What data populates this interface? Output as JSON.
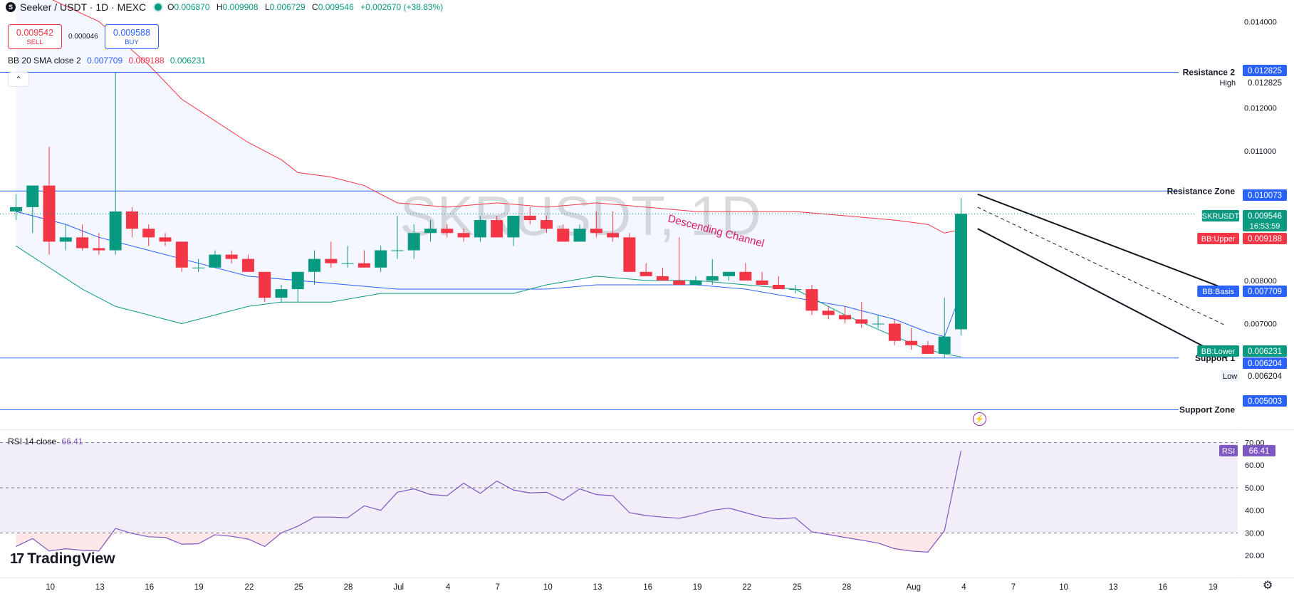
{
  "header": {
    "symbol_icon": "S",
    "title": "Seeker / USDT · 1D · MEXC",
    "ohlc": [
      {
        "k": "O",
        "v": "0.006870"
      },
      {
        "k": "H",
        "v": "0.009908"
      },
      {
        "k": "L",
        "v": "0.006729"
      },
      {
        "k": "C",
        "v": "0.009546"
      }
    ],
    "change": "+0.002670 (+38.83%)"
  },
  "trade": {
    "sell_price": "0.009542",
    "sell_label": "SELL",
    "spread": "0.000046",
    "buy_price": "0.009588",
    "buy_label": "BUY"
  },
  "bb_legend": {
    "name": "BB 20 SMA close 2",
    "basis": "0.007709",
    "upper": "0.009188",
    "lower": "0.006231"
  },
  "rsi_legend": {
    "name": "RSI 14 close",
    "value": "66.41"
  },
  "branding": {
    "logo_mark": "17",
    "logo_text": "TradingView"
  },
  "icons": {
    "collapse": "chevron-up-icon",
    "flash": "lightning-icon",
    "settings": "gear-icon"
  },
  "colors": {
    "up": "#089981",
    "down": "#f23645",
    "bb_upper": "#f23645",
    "bb_basis": "#2962ff",
    "bb_lower": "#089981",
    "rsi": "#7e57c2",
    "hline": "#2962ff"
  },
  "chart_data": {
    "type": "candlestick",
    "watermark": "SKRUSDT, 1D",
    "price_axis": {
      "ticks": [
        "0.014000",
        "0.012000",
        "0.011000",
        "0.008000",
        "0.007000"
      ],
      "range": [
        0.00455,
        0.0145
      ]
    },
    "time_axis": {
      "ticks": [
        "10",
        "13",
        "16",
        "19",
        "22",
        "25",
        "28",
        "Jul",
        "4",
        "7",
        "10",
        "13",
        "16",
        "19",
        "22",
        "25",
        "28",
        "Aug",
        "4",
        "7",
        "10",
        "13",
        "16",
        "19"
      ]
    },
    "horizontal_lines": [
      {
        "label": "Resistance 2",
        "tag": "0.012825",
        "price": 0.012825
      },
      {
        "label": "Resistance Zone",
        "tag": "0.010073",
        "price": 0.010073
      },
      {
        "label": "Support 1",
        "tag": "0.006204",
        "price": 0.006204
      },
      {
        "label": "Support Zone",
        "tag": "0.005003",
        "price": 0.005003
      }
    ],
    "price_tags": [
      {
        "label": "High",
        "value": "0.012825"
      },
      {
        "label": "SKRUSDT",
        "value": "0.009546",
        "countdown": "16:53:59"
      },
      {
        "label": "BB:Upper",
        "value": "0.009188"
      },
      {
        "label": "BB:Basis",
        "value": "0.007709"
      },
      {
        "label": "BB:Lower",
        "value": "0.006231"
      },
      {
        "label": "",
        "value": "0.006204"
      },
      {
        "label": "Low",
        "value": "0.006204"
      }
    ],
    "channel_label": "Descending Channel",
    "channel": {
      "upper": [
        [
          58,
          0.01
        ],
        [
          73,
          0.0078
        ]
      ],
      "mid": [
        [
          58,
          0.0097
        ],
        [
          73,
          0.00695
        ]
      ],
      "lower": [
        [
          58,
          0.0092
        ],
        [
          73,
          0.0062
        ]
      ]
    },
    "candles": [
      [
        0,
        0.0096,
        0.01,
        0.0094,
        0.0097
      ],
      [
        1,
        0.0097,
        0.0102,
        0.0091,
        0.0102
      ],
      [
        2,
        0.0102,
        0.0111,
        0.0086,
        0.0089
      ],
      [
        3,
        0.0089,
        0.0093,
        0.0087,
        0.009
      ],
      [
        4,
        0.009,
        0.0093,
        0.0087,
        0.00875
      ],
      [
        5,
        0.00875,
        0.0091,
        0.0086,
        0.0087
      ],
      [
        6,
        0.0087,
        0.01283,
        0.0086,
        0.0096
      ],
      [
        7,
        0.0096,
        0.0097,
        0.009,
        0.0092
      ],
      [
        8,
        0.0092,
        0.0093,
        0.0088,
        0.009
      ],
      [
        9,
        0.009,
        0.0091,
        0.0088,
        0.0089
      ],
      [
        10,
        0.0089,
        0.0089,
        0.0082,
        0.0083
      ],
      [
        11,
        0.0083,
        0.0085,
        0.0082,
        0.0083
      ],
      [
        12,
        0.0083,
        0.0087,
        0.0083,
        0.0086
      ],
      [
        13,
        0.0086,
        0.0087,
        0.0084,
        0.0085
      ],
      [
        14,
        0.0085,
        0.0086,
        0.0082,
        0.0082
      ],
      [
        15,
        0.0082,
        0.0082,
        0.0075,
        0.0076
      ],
      [
        16,
        0.0076,
        0.0079,
        0.0075,
        0.0078
      ],
      [
        17,
        0.0078,
        0.0082,
        0.0075,
        0.0082
      ],
      [
        18,
        0.0082,
        0.0087,
        0.0079,
        0.0085
      ],
      [
        19,
        0.0085,
        0.0089,
        0.0083,
        0.0084
      ],
      [
        20,
        0.0084,
        0.0088,
        0.0083,
        0.0084
      ],
      [
        21,
        0.0084,
        0.0087,
        0.0083,
        0.0083
      ],
      [
        22,
        0.0083,
        0.0088,
        0.0082,
        0.0087
      ],
      [
        23,
        0.0087,
        0.0095,
        0.0085,
        0.0087
      ],
      [
        24,
        0.0087,
        0.0093,
        0.0085,
        0.0091
      ],
      [
        25,
        0.0091,
        0.0094,
        0.0089,
        0.0092
      ],
      [
        26,
        0.0092,
        0.0093,
        0.009,
        0.0091
      ],
      [
        27,
        0.0091,
        0.0092,
        0.0089,
        0.009
      ],
      [
        28,
        0.009,
        0.0095,
        0.0089,
        0.0094
      ],
      [
        29,
        0.0094,
        0.0095,
        0.009,
        0.009
      ],
      [
        30,
        0.009,
        0.0095,
        0.0088,
        0.0095
      ],
      [
        31,
        0.0095,
        0.0097,
        0.0093,
        0.0094
      ],
      [
        32,
        0.0094,
        0.0095,
        0.0091,
        0.0092
      ],
      [
        33,
        0.0092,
        0.0093,
        0.0089,
        0.0089
      ],
      [
        34,
        0.0089,
        0.0093,
        0.0089,
        0.0092
      ],
      [
        35,
        0.0092,
        0.0096,
        0.009,
        0.0091
      ],
      [
        36,
        0.0091,
        0.0096,
        0.0089,
        0.009
      ],
      [
        37,
        0.009,
        0.0091,
        0.0082,
        0.0082
      ],
      [
        38,
        0.0082,
        0.0084,
        0.0081,
        0.0081
      ],
      [
        39,
        0.0081,
        0.0083,
        0.008,
        0.008
      ],
      [
        40,
        0.008,
        0.009,
        0.0079,
        0.0079
      ],
      [
        41,
        0.0079,
        0.0081,
        0.0079,
        0.008
      ],
      [
        42,
        0.008,
        0.0085,
        0.0079,
        0.0081
      ],
      [
        43,
        0.0081,
        0.0082,
        0.008,
        0.0082
      ],
      [
        44,
        0.0082,
        0.0084,
        0.008,
        0.008
      ],
      [
        45,
        0.008,
        0.0082,
        0.0079,
        0.0079
      ],
      [
        46,
        0.0079,
        0.0081,
        0.0078,
        0.0078
      ],
      [
        47,
        0.0078,
        0.0079,
        0.0077,
        0.0078
      ],
      [
        48,
        0.0078,
        0.0079,
        0.0072,
        0.0073
      ],
      [
        49,
        0.0073,
        0.0074,
        0.0071,
        0.0072
      ],
      [
        50,
        0.0072,
        0.0074,
        0.007,
        0.0071
      ],
      [
        51,
        0.0071,
        0.0075,
        0.0069,
        0.007
      ],
      [
        52,
        0.007,
        0.0072,
        0.0069,
        0.007
      ],
      [
        53,
        0.007,
        0.0071,
        0.0065,
        0.0066
      ],
      [
        54,
        0.0066,
        0.0069,
        0.0064,
        0.0065
      ],
      [
        55,
        0.0065,
        0.0066,
        0.0063,
        0.0063
      ],
      [
        56,
        0.0063,
        0.0076,
        0.0062,
        0.0067
      ],
      [
        57,
        0.00687,
        0.00991,
        0.00673,
        0.009546
      ]
    ],
    "bb_upper": [
      [
        0,
        0.0149
      ],
      [
        5,
        0.014
      ],
      [
        8,
        0.013
      ],
      [
        10,
        0.0122
      ],
      [
        12,
        0.0117
      ],
      [
        14,
        0.0112
      ],
      [
        16,
        0.0108
      ],
      [
        17,
        0.0105
      ],
      [
        19,
        0.0104
      ],
      [
        21,
        0.0102
      ],
      [
        23,
        0.0098
      ],
      [
        26,
        0.0097
      ],
      [
        29,
        0.0098
      ],
      [
        32,
        0.0097
      ],
      [
        35,
        0.0098
      ],
      [
        38,
        0.0097
      ],
      [
        41,
        0.0096
      ],
      [
        44,
        0.0096
      ],
      [
        47,
        0.0096
      ],
      [
        50,
        0.0095
      ],
      [
        53,
        0.0094
      ],
      [
        55,
        0.0093
      ],
      [
        56,
        0.0091
      ],
      [
        57,
        0.00918
      ]
    ],
    "bb_basis": [
      [
        0,
        0.0096
      ],
      [
        3,
        0.0093
      ],
      [
        5,
        0.009
      ],
      [
        8,
        0.0087
      ],
      [
        11,
        0.0084
      ],
      [
        14,
        0.0081
      ],
      [
        17,
        0.008
      ],
      [
        20,
        0.0079
      ],
      [
        23,
        0.0078
      ],
      [
        26,
        0.0078
      ],
      [
        29,
        0.0078
      ],
      [
        32,
        0.0078
      ],
      [
        35,
        0.0079
      ],
      [
        38,
        0.0079
      ],
      [
        41,
        0.0079
      ],
      [
        44,
        0.0078
      ],
      [
        47,
        0.0076
      ],
      [
        50,
        0.0074
      ],
      [
        53,
        0.0071
      ],
      [
        55,
        0.0068
      ],
      [
        56,
        0.0067
      ],
      [
        57,
        0.00771
      ]
    ],
    "bb_lower": [
      [
        0,
        0.0088
      ],
      [
        2,
        0.0083
      ],
      [
        4,
        0.0078
      ],
      [
        6,
        0.0074
      ],
      [
        8,
        0.0072
      ],
      [
        10,
        0.007
      ],
      [
        12,
        0.0072
      ],
      [
        14,
        0.0074
      ],
      [
        16,
        0.0075
      ],
      [
        19,
        0.0075
      ],
      [
        22,
        0.0077
      ],
      [
        25,
        0.0077
      ],
      [
        28,
        0.0077
      ],
      [
        30,
        0.0077
      ],
      [
        32,
        0.0079
      ],
      [
        35,
        0.0081
      ],
      [
        38,
        0.008
      ],
      [
        41,
        0.008
      ],
      [
        44,
        0.0079
      ],
      [
        47,
        0.0078
      ],
      [
        50,
        0.0072
      ],
      [
        53,
        0.0067
      ],
      [
        55,
        0.0064
      ],
      [
        56,
        0.0063
      ],
      [
        57,
        0.00623
      ]
    ],
    "rsi": {
      "ticks": [
        "70.00",
        "60.00",
        "50.00",
        "40.00",
        "30.00",
        "20.00"
      ],
      "range": [
        15,
        73
      ],
      "levels": [
        70,
        50,
        30
      ],
      "values": [
        [
          0,
          24
        ],
        [
          1,
          27.5
        ],
        [
          2,
          22
        ],
        [
          3,
          23
        ],
        [
          4,
          22.3
        ],
        [
          5,
          22
        ],
        [
          6,
          32
        ],
        [
          7,
          29.8
        ],
        [
          8,
          28.3
        ],
        [
          9,
          28
        ],
        [
          10,
          25
        ],
        [
          11,
          25.2
        ],
        [
          12,
          29.2
        ],
        [
          13,
          28.5
        ],
        [
          14,
          27.3
        ],
        [
          15,
          24
        ],
        [
          16,
          30
        ],
        [
          17,
          33
        ],
        [
          18,
          37
        ],
        [
          19,
          37
        ],
        [
          20,
          36.7
        ],
        [
          21,
          42
        ],
        [
          22,
          40
        ],
        [
          23,
          48
        ],
        [
          24,
          49.5
        ],
        [
          25,
          47
        ],
        [
          26,
          46.5
        ],
        [
          27,
          52
        ],
        [
          28,
          47.5
        ],
        [
          29,
          53
        ],
        [
          30,
          49
        ],
        [
          31,
          47.7
        ],
        [
          32,
          48
        ],
        [
          33,
          44.5
        ],
        [
          34,
          49.5
        ],
        [
          35,
          47
        ],
        [
          36,
          46.5
        ],
        [
          37,
          39
        ],
        [
          38,
          37.7
        ],
        [
          39,
          37
        ],
        [
          40,
          36.5
        ],
        [
          41,
          38
        ],
        [
          42,
          40
        ],
        [
          43,
          41
        ],
        [
          44,
          39
        ],
        [
          45,
          37
        ],
        [
          46,
          36.2
        ],
        [
          47,
          36.7
        ],
        [
          48,
          30.5
        ],
        [
          49,
          29.3
        ],
        [
          50,
          28
        ],
        [
          51,
          26.8
        ],
        [
          52,
          25.5
        ],
        [
          53,
          23
        ],
        [
          54,
          22
        ],
        [
          55,
          21.5
        ],
        [
          56,
          31
        ],
        [
          57,
          66.41
        ]
      ]
    }
  }
}
